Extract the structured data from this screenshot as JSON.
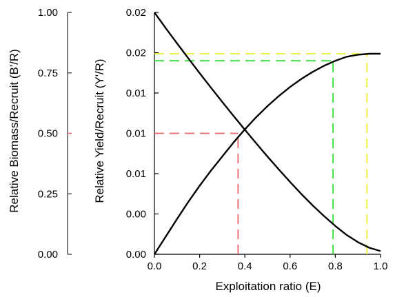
{
  "chart_data": {
    "type": "line",
    "xlabel": "Exploitation ratio (E)",
    "ylabel_left": "Relative Biomass/Recruit (B'/R)",
    "ylabel_right": "Relative Yield/Recruit (Y'/R)",
    "x_ticks": [
      "0.0",
      "0.2",
      "0.4",
      "0.6",
      "0.8",
      "1.0"
    ],
    "x_range": [
      0,
      1
    ],
    "left_ticks": [
      "1.00",
      "0.75",
      "0.50",
      "0.25",
      "0.00"
    ],
    "left_range": [
      0,
      1
    ],
    "right_ticks": [
      "0.02",
      "0.02",
      "0.01",
      "0.01",
      "0.01",
      "0.00",
      "0.00"
    ],
    "right_range": [
      0,
      0.024
    ],
    "grid": false,
    "series": [
      {
        "axis": "left",
        "color": "#000000",
        "x": [
          0,
          0.05,
          0.1,
          0.15,
          0.2,
          0.25,
          0.3,
          0.35,
          0.4,
          0.45,
          0.5,
          0.55,
          0.6,
          0.65,
          0.7,
          0.75,
          0.8,
          0.85,
          0.9,
          0.95,
          1.0
        ],
        "values": [
          1.0,
          0.935,
          0.872,
          0.81,
          0.749,
          0.689,
          0.63,
          0.572,
          0.515,
          0.459,
          0.404,
          0.351,
          0.299,
          0.249,
          0.202,
          0.158,
          0.117,
          0.08,
          0.05,
          0.027,
          0.013
        ]
      },
      {
        "axis": "right",
        "color": "#000000",
        "x": [
          0,
          0.05,
          0.1,
          0.15,
          0.2,
          0.25,
          0.3,
          0.35,
          0.4,
          0.45,
          0.5,
          0.55,
          0.6,
          0.65,
          0.7,
          0.75,
          0.8,
          0.85,
          0.9,
          0.95,
          1.0
        ],
        "values": [
          0,
          0.00175,
          0.0035,
          0.0052,
          0.0068,
          0.0083,
          0.0097,
          0.0111,
          0.0124,
          0.0136,
          0.0147,
          0.0157,
          0.0166,
          0.0174,
          0.0181,
          0.0187,
          0.0192,
          0.0196,
          0.0198,
          0.0199,
          0.0199
        ]
      }
    ],
    "reference_lines": [
      {
        "color": "#e8676a",
        "x": 0.37,
        "left_value": 0.5
      },
      {
        "color": "#33dd33",
        "x": 0.79,
        "right_value": 0.0192
      },
      {
        "color": "#eeee33",
        "x": 0.94,
        "right_value": 0.0199
      }
    ]
  }
}
